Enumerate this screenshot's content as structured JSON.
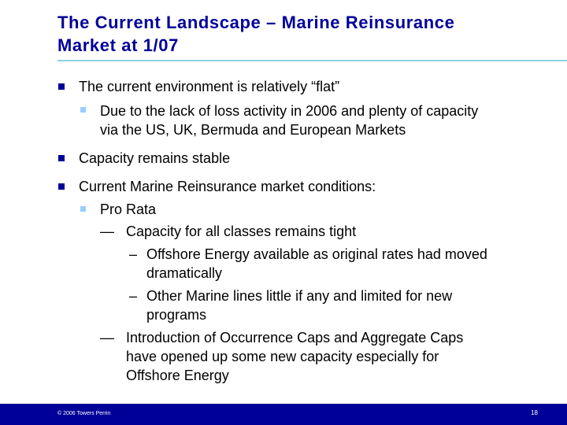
{
  "title": {
    "line1": "The Current Landscape – Marine Reinsurance",
    "line2": "Market at 1/07"
  },
  "bullets": {
    "b1": "The current environment is relatively “flat”",
    "b1_sub1_line1": "Due to the lack of loss activity in 2006 and plenty of capacity",
    "b1_sub1_line2": "via the US, UK, Bermuda and European Markets",
    "b2": "Capacity remains stable",
    "b3": "Current Marine Reinsurance market conditions:",
    "b3_sub1": "Pro Rata",
    "b3_sub1_item1": "Capacity for all classes remains tight",
    "b3_sub1_item1_a_line1": "Offshore Energy available as original rates had moved",
    "b3_sub1_item1_a_line2": "dramatically",
    "b3_sub1_item1_b_line1": "Other Marine lines little if any and limited for new",
    "b3_sub1_item1_b_line2": "programs",
    "b3_sub1_item2_line1": "Introduction of Occurrence Caps and Aggregate Caps",
    "b3_sub1_item2_line2": "have opened up some new capacity especially for",
    "b3_sub1_item2_line3": "Offshore Energy",
    "dash_long": "—",
    "dash_short": "–"
  },
  "footer": {
    "copyright": "© 2006 Towers Perrin",
    "page_number": "18"
  },
  "colors": {
    "title": "#000099",
    "rule": "#8fd3e6",
    "bullet_level1": "#000099",
    "bullet_level2": "#99ccff",
    "footer_bg": "#000099"
  }
}
